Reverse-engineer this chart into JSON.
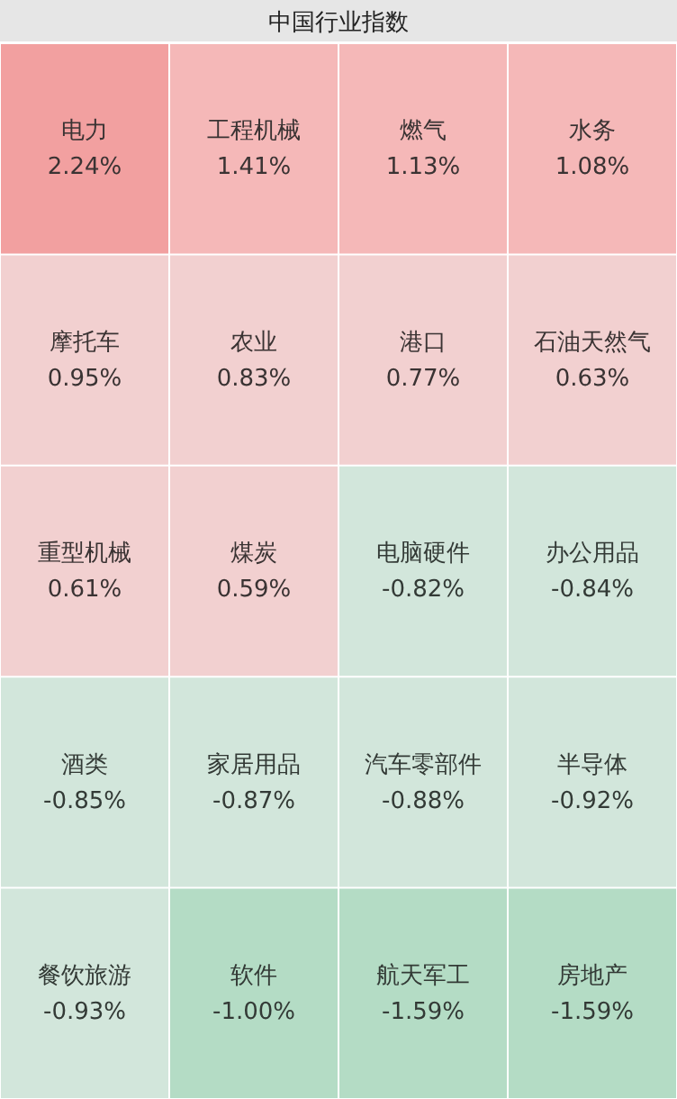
{
  "chart_data": {
    "type": "other",
    "title": "中国行业指数",
    "categories": [
      "电力",
      "工程机械",
      "燃气",
      "水务",
      "摩托车",
      "农业",
      "港口",
      "石油天然气",
      "重型机械",
      "煤炭",
      "电脑硬件",
      "办公用品",
      "酒类",
      "家居用品",
      "汽车零部件",
      "半导体",
      "餐饮旅游",
      "软件",
      "航天军工",
      "房地产"
    ],
    "values": [
      2.24,
      1.41,
      1.13,
      1.08,
      0.95,
      0.83,
      0.77,
      0.63,
      0.61,
      0.59,
      -0.82,
      -0.84,
      -0.85,
      -0.87,
      -0.88,
      -0.92,
      -0.93,
      -1.0,
      -1.59,
      -1.59
    ],
    "value_labels": [
      "2.24%",
      "1.41%",
      "1.13%",
      "1.08%",
      "0.95%",
      "0.83%",
      "0.77%",
      "0.63%",
      "0.61%",
      "0.59%",
      "-0.82%",
      "-0.84%",
      "-0.85%",
      "-0.87%",
      "-0.88%",
      "-0.92%",
      "-0.93%",
      "-1.00%",
      "-1.59%",
      "-1.59%"
    ],
    "colors": [
      "#f2a0a0",
      "#f5b8b8",
      "#f5b8b8",
      "#f5b8b8",
      "#f2d0d0",
      "#f2d0d0",
      "#f2d0d0",
      "#f2d0d0",
      "#f2d0d0",
      "#f2d0d0",
      "#d2e6db",
      "#d2e6db",
      "#d2e6db",
      "#d2e6db",
      "#d2e6db",
      "#d2e6db",
      "#d2e6db",
      "#b4dcc5",
      "#b4dcc5",
      "#b4dcc5"
    ]
  }
}
